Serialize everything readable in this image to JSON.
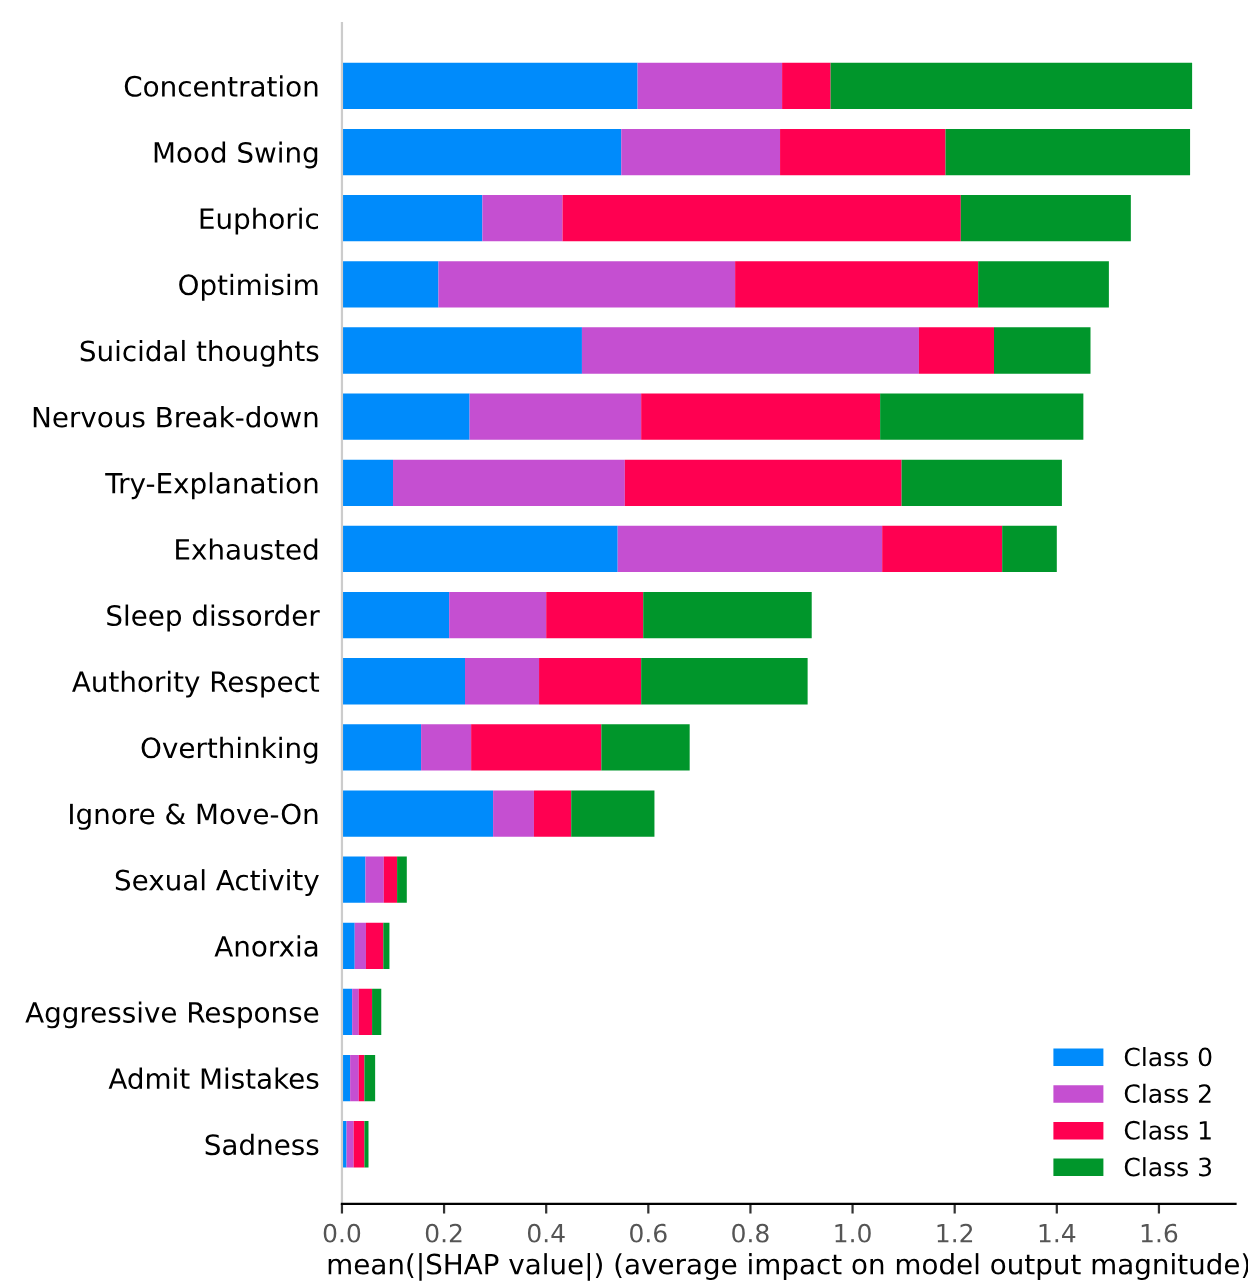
{
  "chart_data": {
    "type": "bar",
    "orientation": "horizontal",
    "stacked": true,
    "xlabel": "mean(|SHAP value|) (average impact on model output magnitude)",
    "categories": [
      "Concentration",
      "Mood Swing",
      "Euphoric",
      "Optimisim",
      "Suicidal thoughts",
      "Nervous Break-down",
      "Try-Explanation",
      "Exhausted",
      "Sleep dissorder",
      "Authority Respect",
      "Overthinking",
      "Ignore & Move-On",
      "Sexual Activity",
      "Anorxia",
      "Aggressive Response",
      "Admit Mistakes",
      "Sadness"
    ],
    "series": [
      {
        "name": "Class 0",
        "color": "#008bfb",
        "values": [
          0.579,
          0.547,
          0.275,
          0.189,
          0.47,
          0.25,
          0.1,
          0.54,
          0.21,
          0.241,
          0.155,
          0.296,
          0.046,
          0.025,
          0.02,
          0.016,
          0.009
        ]
      },
      {
        "name": "Class 2",
        "color": "#c54fd1",
        "values": [
          0.283,
          0.311,
          0.157,
          0.581,
          0.66,
          0.336,
          0.454,
          0.518,
          0.19,
          0.145,
          0.098,
          0.08,
          0.036,
          0.022,
          0.013,
          0.017,
          0.014
        ]
      },
      {
        "name": "Class 1",
        "color": "#ff0051",
        "values": [
          0.095,
          0.324,
          0.78,
          0.476,
          0.147,
          0.468,
          0.542,
          0.235,
          0.19,
          0.2,
          0.255,
          0.073,
          0.026,
          0.034,
          0.026,
          0.011,
          0.021
        ]
      },
      {
        "name": "Class 3",
        "color": "#00962b",
        "values": [
          0.708,
          0.479,
          0.333,
          0.256,
          0.189,
          0.398,
          0.314,
          0.107,
          0.33,
          0.326,
          0.173,
          0.163,
          0.019,
          0.012,
          0.018,
          0.021,
          0.008
        ]
      }
    ],
    "xlim": [
      0,
      1.75
    ],
    "xticks": [
      {
        "value": 0,
        "label": "0.0"
      },
      0.2,
      0.4,
      0.6,
      0.8,
      {
        "value": 1,
        "label": "1.0"
      },
      1.2,
      1.4,
      1.6
    ],
    "legend": "bottom right",
    "grid": false
  }
}
